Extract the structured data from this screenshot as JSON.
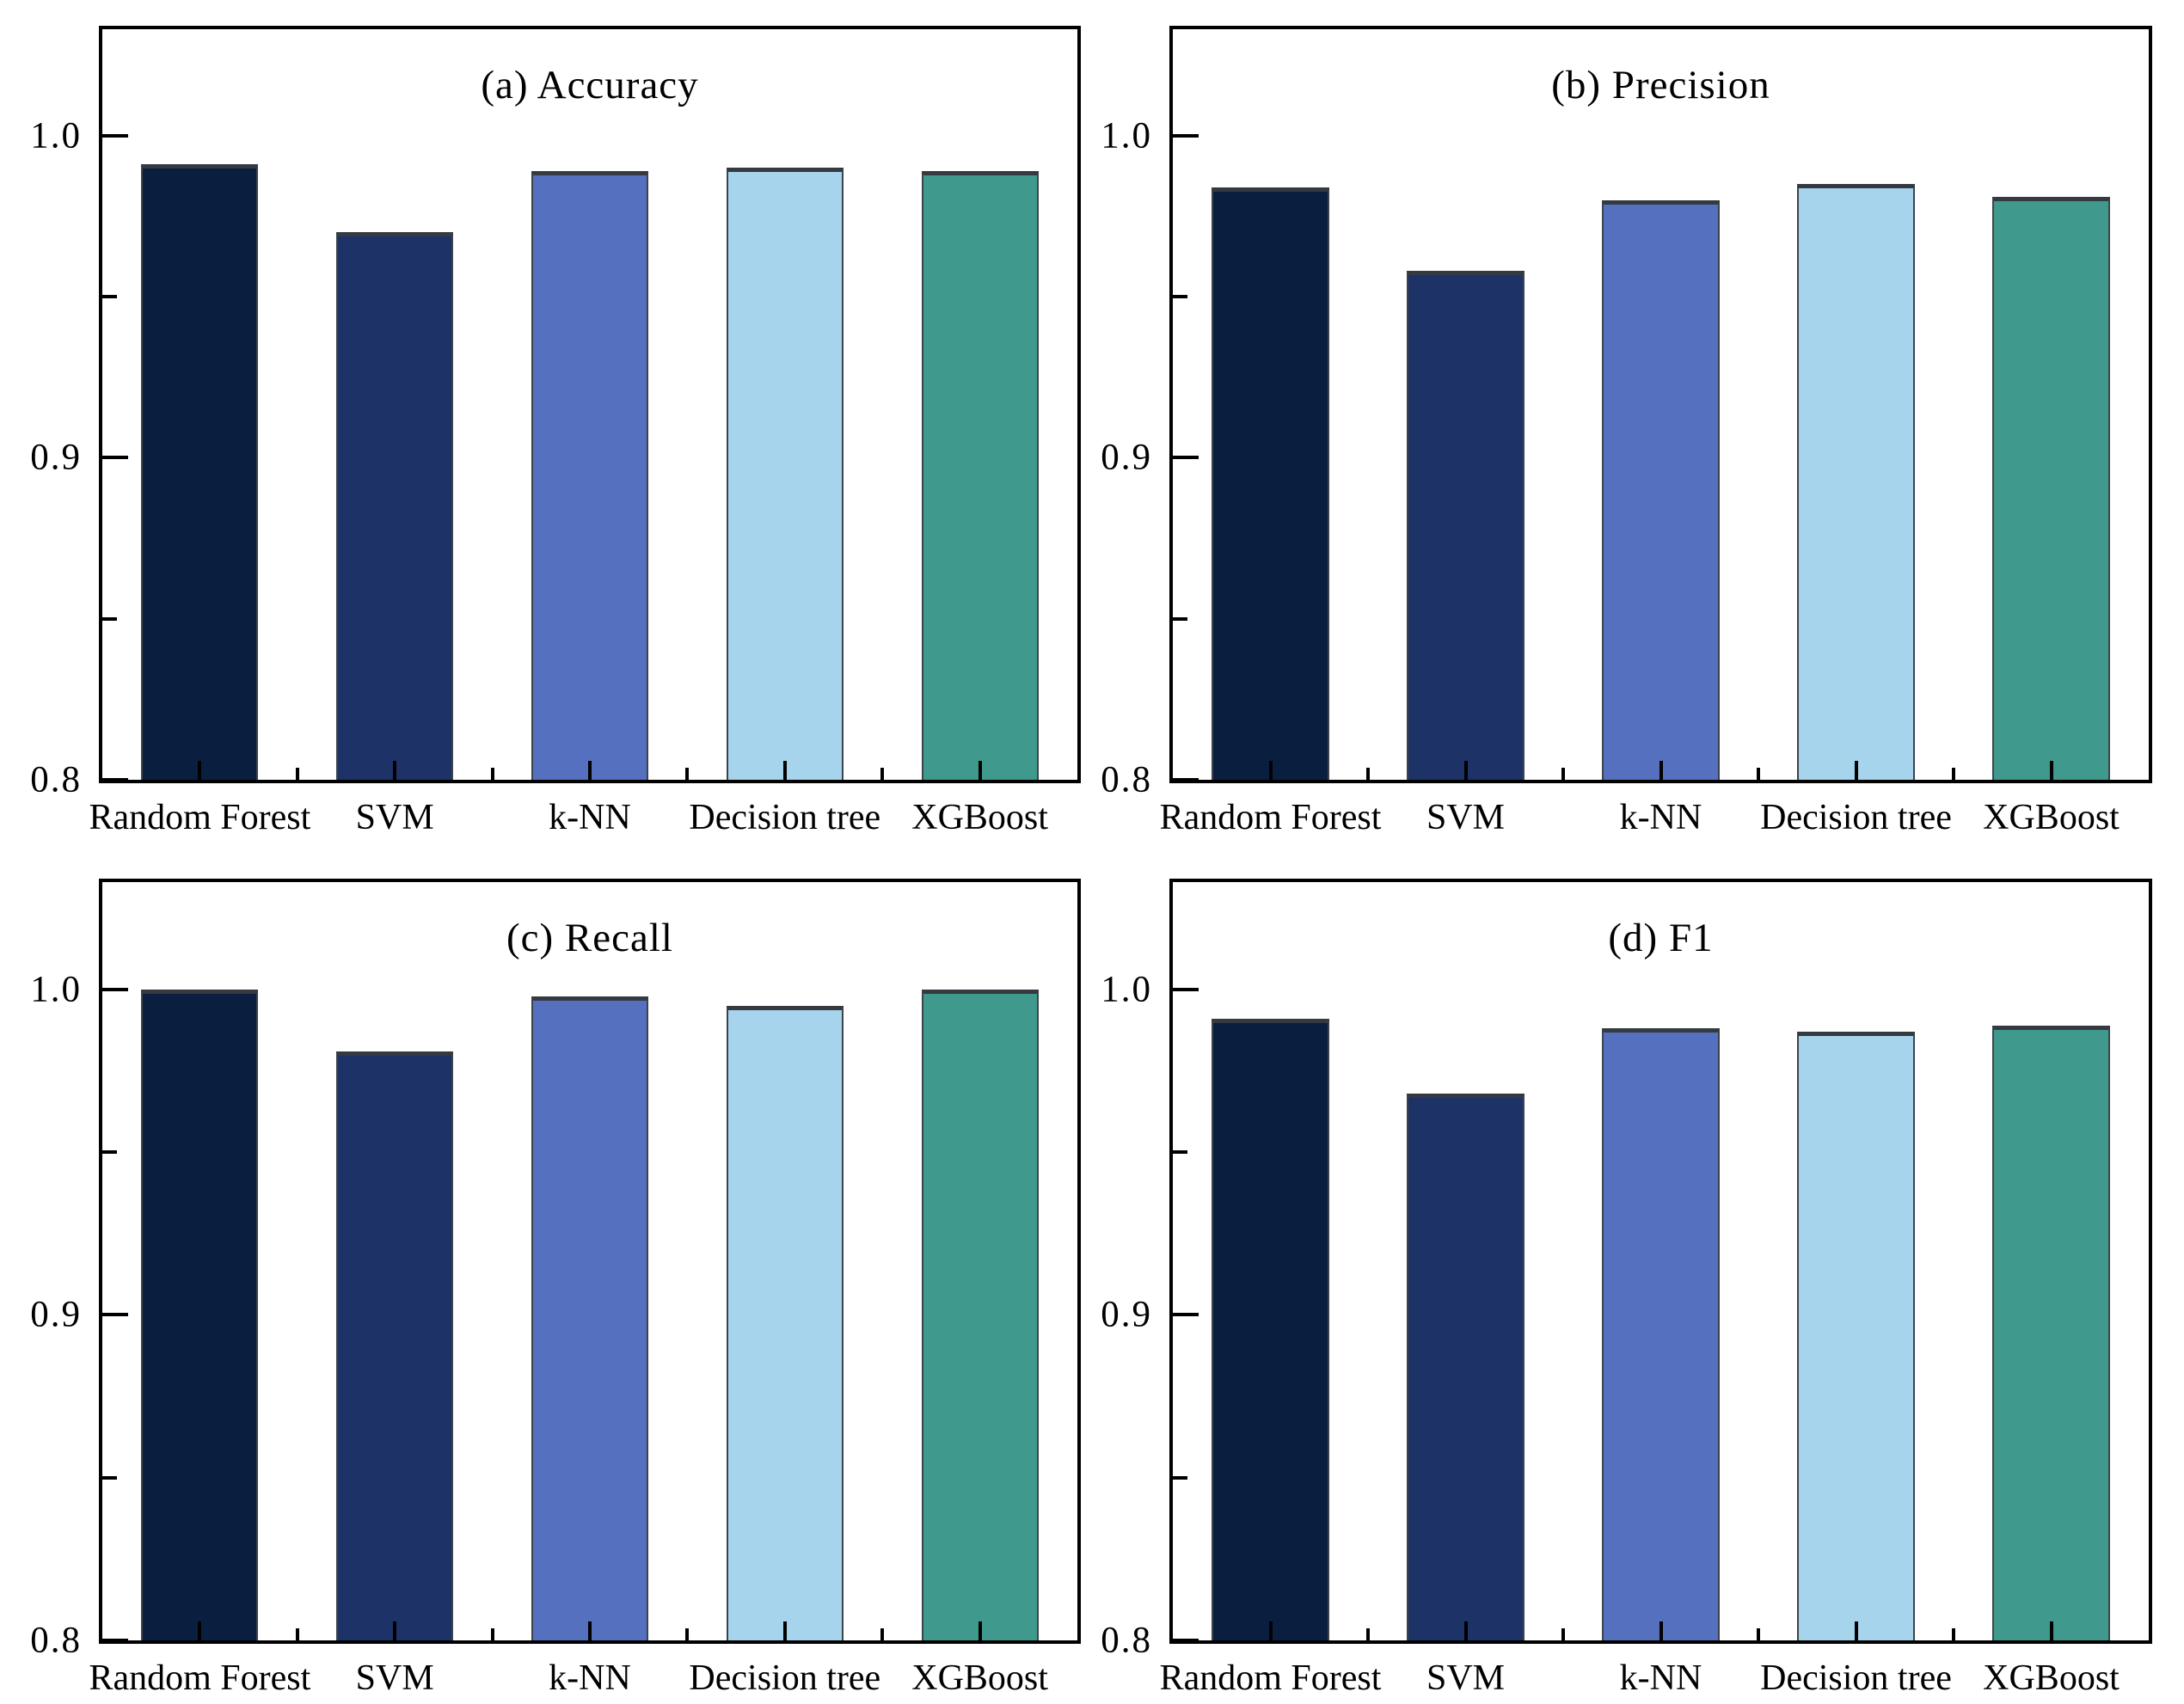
{
  "figure": {
    "background": "#ffffff"
  },
  "style": {
    "bar_colors": [
      "#0a1f3f",
      "#1d3267",
      "#5570be",
      "#a6d4ec",
      "#3f998c"
    ],
    "bar_edge_color": "#3d434a",
    "axis_color": "#000000",
    "text_color": "#000000"
  },
  "chart_data": [
    {
      "type": "bar",
      "title": "(a) Accuracy",
      "categories": [
        "Random Forest",
        "SVM",
        "k-NN",
        "Decision tree",
        "XGBoost"
      ],
      "values": [
        0.991,
        0.97,
        0.989,
        0.99,
        0.989
      ],
      "xlabel": "",
      "ylabel": "",
      "ylim": [
        0.8,
        1.033
      ],
      "yticks": [
        {
          "value": 0.8,
          "label": "0.8"
        },
        {
          "value": 0.9,
          "label": "0.9"
        },
        {
          "value": 1.0,
          "label": "1.0"
        }
      ],
      "minor_yticks": [
        0.85,
        0.95
      ],
      "grid": false,
      "legend": null
    },
    {
      "type": "bar",
      "title": "(b) Precision",
      "categories": [
        "Random Forest",
        "SVM",
        "k-NN",
        "Decision tree",
        "XGBoost"
      ],
      "values": [
        0.984,
        0.958,
        0.98,
        0.985,
        0.981
      ],
      "xlabel": "",
      "ylabel": "",
      "ylim": [
        0.8,
        1.033
      ],
      "yticks": [
        {
          "value": 0.8,
          "label": "0.8"
        },
        {
          "value": 0.9,
          "label": "0.9"
        },
        {
          "value": 1.0,
          "label": "1.0"
        }
      ],
      "minor_yticks": [
        0.85,
        0.95
      ],
      "grid": false,
      "legend": null
    },
    {
      "type": "bar",
      "title": "(c) Recall",
      "categories": [
        "Random Forest",
        "SVM",
        "k-NN",
        "Decision tree",
        "XGBoost"
      ],
      "values": [
        1.0,
        0.981,
        0.998,
        0.995,
        1.0
      ],
      "xlabel": "",
      "ylabel": "",
      "ylim": [
        0.8,
        1.033
      ],
      "yticks": [
        {
          "value": 0.8,
          "label": "0.8"
        },
        {
          "value": 0.9,
          "label": "0.9"
        },
        {
          "value": 1.0,
          "label": "1.0"
        }
      ],
      "minor_yticks": [
        0.85,
        0.95
      ],
      "grid": false,
      "legend": null
    },
    {
      "type": "bar",
      "title": "(d) F1",
      "categories": [
        "Random Forest",
        "SVM",
        "k-NN",
        "Decision tree",
        "XGBoost"
      ],
      "values": [
        0.991,
        0.968,
        0.988,
        0.987,
        0.989
      ],
      "xlabel": "",
      "ylabel": "",
      "ylim": [
        0.8,
        1.033
      ],
      "yticks": [
        {
          "value": 0.8,
          "label": "0.8"
        },
        {
          "value": 0.9,
          "label": "0.9"
        },
        {
          "value": 1.0,
          "label": "1.0"
        }
      ],
      "minor_yticks": [
        0.85,
        0.95
      ],
      "grid": false,
      "legend": null
    }
  ]
}
